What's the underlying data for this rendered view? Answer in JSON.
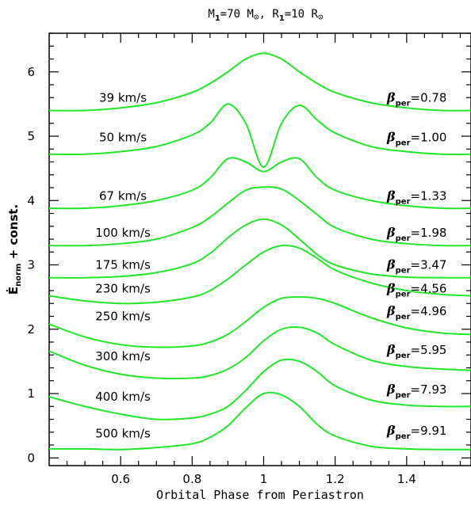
{
  "chart_data": {
    "type": "line",
    "title_parts": {
      "m_sym": "M",
      "m_sub": "1",
      "m_val": "=70 M",
      "sun": "⊙",
      "sep": ", ",
      "r_sym": "R",
      "r_sub": "1",
      "r_val": "=10 R"
    },
    "xlabel": "Orbital Phase from Periastron",
    "ylabel_parts": {
      "sym": "Ė",
      "sub": "norm",
      "rest": " + const."
    },
    "xlim": [
      0.4,
      1.58
    ],
    "ylim": [
      -0.12,
      6.6
    ],
    "xticks": [
      "0.6",
      "0.8",
      "1",
      "1.2",
      "1.4"
    ],
    "yticks": [
      "0",
      "1",
      "2",
      "3",
      "4",
      "5",
      "6"
    ],
    "line_color": "#22e62a",
    "series": [
      {
        "label": "39 km/s",
        "beta_value": "=0.78",
        "label_y": 5.6,
        "beta_y": 5.6,
        "x": [
          0.4,
          0.5,
          0.6,
          0.7,
          0.8,
          0.85,
          0.9,
          0.95,
          1.0,
          1.05,
          1.1,
          1.15,
          1.2,
          1.3,
          1.4,
          1.5,
          1.58
        ],
        "y": [
          5.4,
          5.4,
          5.44,
          5.52,
          5.68,
          5.82,
          6.0,
          6.2,
          6.29,
          6.2,
          6.0,
          5.82,
          5.68,
          5.52,
          5.44,
          5.4,
          5.4
        ]
      },
      {
        "label": "50 km/s",
        "beta_value": "=1.00",
        "label_y": 4.98,
        "beta_y": 4.98,
        "x": [
          0.4,
          0.5,
          0.6,
          0.7,
          0.8,
          0.85,
          0.9,
          0.95,
          1.0,
          1.05,
          1.1,
          1.15,
          1.2,
          1.3,
          1.4,
          1.5,
          1.58
        ],
        "y": [
          4.72,
          4.72,
          4.76,
          4.84,
          5.02,
          5.2,
          5.5,
          5.2,
          4.52,
          5.2,
          5.48,
          5.25,
          5.05,
          4.84,
          4.76,
          4.72,
          4.72
        ]
      },
      {
        "label": "67 km/s",
        "beta_value": "=1.33",
        "label_y": 4.07,
        "beta_y": 4.07,
        "x": [
          0.4,
          0.5,
          0.6,
          0.7,
          0.8,
          0.85,
          0.9,
          0.95,
          1.0,
          1.05,
          1.1,
          1.15,
          1.2,
          1.3,
          1.4,
          1.5,
          1.58
        ],
        "y": [
          3.88,
          3.88,
          3.92,
          4.0,
          4.16,
          4.35,
          4.65,
          4.6,
          4.45,
          4.6,
          4.65,
          4.35,
          4.16,
          4.0,
          3.92,
          3.88,
          3.88
        ]
      },
      {
        "label": "100 km/s",
        "beta_value": "=1.98",
        "label_y": 3.5,
        "beta_y": 3.5,
        "x": [
          0.4,
          0.5,
          0.6,
          0.7,
          0.8,
          0.85,
          0.9,
          0.95,
          1.0,
          1.05,
          1.1,
          1.15,
          1.2,
          1.3,
          1.4,
          1.5,
          1.58
        ],
        "y": [
          3.3,
          3.3,
          3.33,
          3.4,
          3.58,
          3.74,
          3.96,
          4.16,
          4.21,
          4.18,
          4.0,
          3.78,
          3.58,
          3.4,
          3.33,
          3.3,
          3.3
        ]
      },
      {
        "label": "175 km/s",
        "beta_value": "=3.47",
        "label_y": 3.0,
        "beta_y": 3.0,
        "x": [
          0.4,
          0.5,
          0.6,
          0.7,
          0.8,
          0.85,
          0.9,
          0.95,
          1.0,
          1.05,
          1.1,
          1.15,
          1.2,
          1.3,
          1.4,
          1.5,
          1.58
        ],
        "y": [
          2.8,
          2.8,
          2.82,
          2.88,
          3.02,
          3.18,
          3.42,
          3.62,
          3.71,
          3.62,
          3.4,
          3.16,
          3.0,
          2.86,
          2.81,
          2.8,
          2.8
        ]
      },
      {
        "label": "230 km/s",
        "beta_value": "=4.56",
        "label_y": 2.63,
        "beta_y": 2.63,
        "x": [
          0.4,
          0.5,
          0.6,
          0.7,
          0.8,
          0.85,
          0.9,
          0.95,
          1.0,
          1.05,
          1.1,
          1.15,
          1.2,
          1.3,
          1.4,
          1.5,
          1.58
        ],
        "y": [
          2.52,
          2.44,
          2.4,
          2.42,
          2.5,
          2.6,
          2.78,
          3.0,
          3.2,
          3.3,
          3.26,
          3.1,
          2.92,
          2.72,
          2.6,
          2.54,
          2.52
        ]
      },
      {
        "label": "250 km/s",
        "beta_value": "=4.96",
        "label_y": 2.2,
        "beta_y": 2.28,
        "x": [
          0.4,
          0.5,
          0.6,
          0.7,
          0.8,
          0.85,
          0.9,
          0.95,
          1.0,
          1.05,
          1.1,
          1.15,
          1.2,
          1.3,
          1.4,
          1.5,
          1.58
        ],
        "y": [
          2.08,
          1.88,
          1.76,
          1.72,
          1.74,
          1.8,
          1.92,
          2.12,
          2.34,
          2.48,
          2.5,
          2.48,
          2.4,
          2.18,
          2.02,
          1.94,
          1.92
        ]
      },
      {
        "label": "300 km/s",
        "beta_value": "=5.95",
        "label_y": 1.58,
        "beta_y": 1.68,
        "x": [
          0.4,
          0.5,
          0.6,
          0.7,
          0.8,
          0.85,
          0.9,
          0.95,
          1.0,
          1.05,
          1.1,
          1.15,
          1.2,
          1.3,
          1.4,
          1.5,
          1.58
        ],
        "y": [
          1.66,
          1.44,
          1.3,
          1.24,
          1.24,
          1.28,
          1.38,
          1.56,
          1.82,
          2.0,
          2.03,
          1.94,
          1.76,
          1.52,
          1.42,
          1.38,
          1.36
        ]
      },
      {
        "label": "400 km/s",
        "beta_value": "=7.93",
        "label_y": 0.95,
        "beta_y": 1.06,
        "x": [
          0.4,
          0.5,
          0.6,
          0.7,
          0.8,
          0.85,
          0.9,
          0.95,
          1.0,
          1.05,
          1.1,
          1.15,
          1.2,
          1.3,
          1.4,
          1.5,
          1.58
        ],
        "y": [
          0.95,
          0.8,
          0.68,
          0.6,
          0.62,
          0.68,
          0.8,
          1.05,
          1.34,
          1.52,
          1.5,
          1.34,
          1.12,
          0.9,
          0.82,
          0.8,
          0.8
        ]
      },
      {
        "label": "500 km/s",
        "beta_value": "=9.91",
        "label_y": 0.38,
        "beta_y": 0.42,
        "x": [
          0.4,
          0.5,
          0.6,
          0.7,
          0.8,
          0.85,
          0.9,
          0.95,
          1.0,
          1.05,
          1.1,
          1.15,
          1.2,
          1.3,
          1.4,
          1.5,
          1.58
        ],
        "y": [
          0.14,
          0.14,
          0.13,
          0.16,
          0.22,
          0.32,
          0.5,
          0.78,
          1.0,
          0.98,
          0.8,
          0.52,
          0.34,
          0.18,
          0.14,
          0.13,
          0.13
        ]
      }
    ]
  }
}
